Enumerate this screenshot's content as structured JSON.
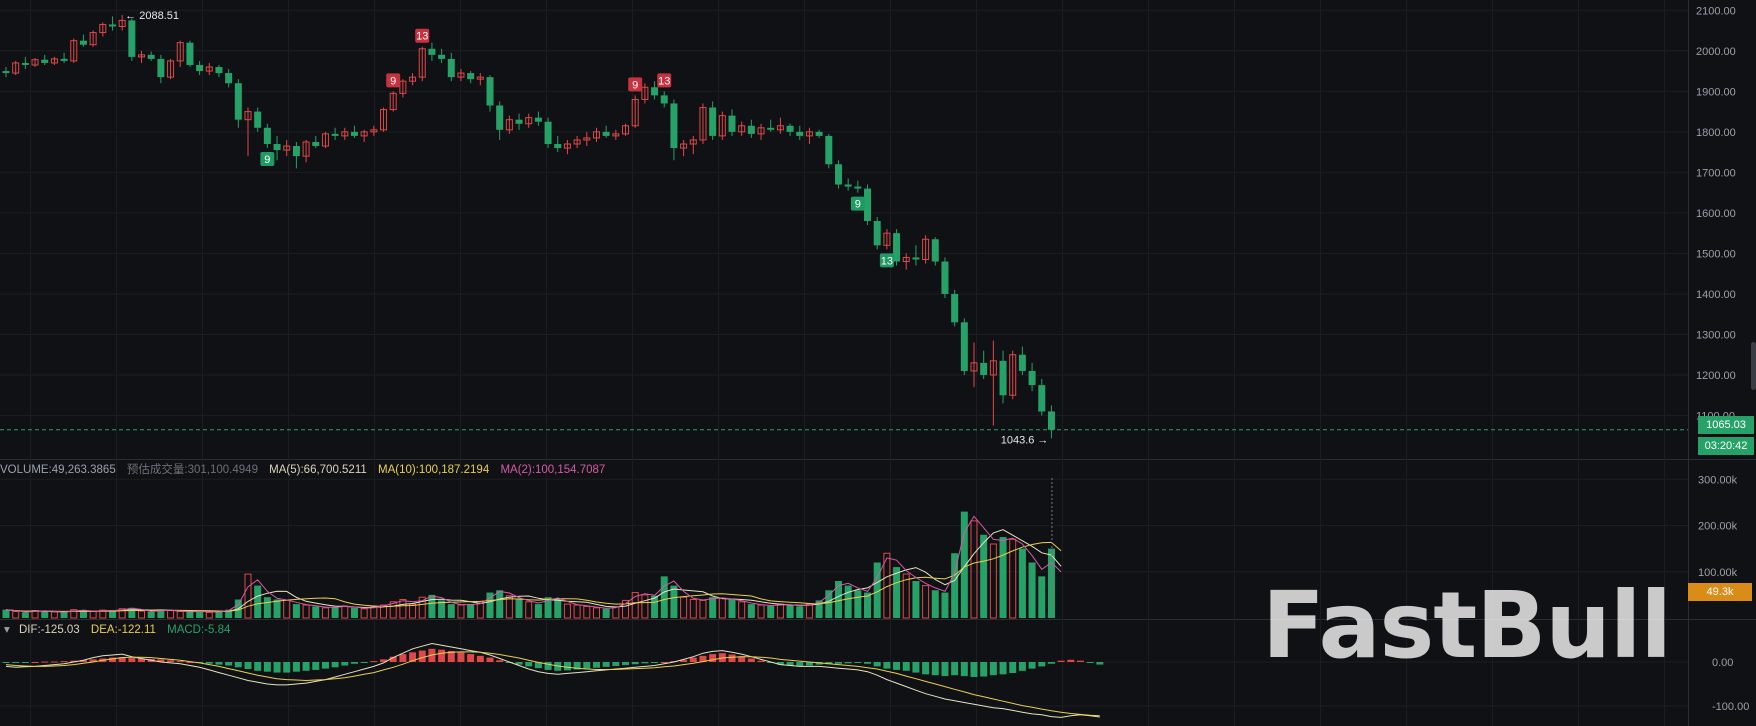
{
  "chart_data": {
    "type": "candlestick",
    "price_axis": {
      "ticks": [
        "2100.00",
        "2000.00",
        "1900.00",
        "1800.00",
        "1700.00",
        "1600.00",
        "1500.00",
        "1400.00",
        "1300.00",
        "1200.00",
        "1100.00"
      ],
      "range": [
        1010,
        2113
      ]
    },
    "current_price": "1065.03",
    "countdown": "03:20:42",
    "high_marker": "2088.51",
    "low_marker": "1043.6",
    "td_markers": [
      {
        "label": "9",
        "kind": "sell",
        "index": 40
      },
      {
        "label": "13",
        "kind": "sell",
        "index": 43
      },
      {
        "label": "9",
        "kind": "buy",
        "index": 27
      },
      {
        "label": "9",
        "kind": "sell",
        "index": 65
      },
      {
        "label": "13",
        "kind": "sell",
        "index": 68
      },
      {
        "label": "9",
        "kind": "buy",
        "index": 88
      },
      {
        "label": "13",
        "kind": "buy",
        "index": 91
      }
    ],
    "candles": [
      {
        "o": 1950,
        "h": 1960,
        "l": 1935,
        "c": 1945
      },
      {
        "o": 1945,
        "h": 1975,
        "l": 1940,
        "c": 1970
      },
      {
        "o": 1970,
        "h": 1985,
        "l": 1955,
        "c": 1965
      },
      {
        "o": 1965,
        "h": 1982,
        "l": 1960,
        "c": 1978
      },
      {
        "o": 1978,
        "h": 1990,
        "l": 1965,
        "c": 1970
      },
      {
        "o": 1970,
        "h": 1985,
        "l": 1965,
        "c": 1980
      },
      {
        "o": 1980,
        "h": 1995,
        "l": 1970,
        "c": 1975
      },
      {
        "o": 1975,
        "h": 2030,
        "l": 1970,
        "c": 2025
      },
      {
        "o": 2025,
        "h": 2040,
        "l": 2010,
        "c": 2015
      },
      {
        "o": 2015,
        "h": 2050,
        "l": 2010,
        "c": 2045
      },
      {
        "o": 2045,
        "h": 2070,
        "l": 2035,
        "c": 2065
      },
      {
        "o": 2065,
        "h": 2085,
        "l": 2050,
        "c": 2060
      },
      {
        "o": 2060,
        "h": 2088.51,
        "l": 2050,
        "c": 2075
      },
      {
        "o": 2075,
        "h": 2080,
        "l": 1975,
        "c": 1985
      },
      {
        "o": 1985,
        "h": 2000,
        "l": 1970,
        "c": 1990
      },
      {
        "o": 1990,
        "h": 1998,
        "l": 1975,
        "c": 1980
      },
      {
        "o": 1980,
        "h": 1990,
        "l": 1920,
        "c": 1935
      },
      {
        "o": 1935,
        "h": 1980,
        "l": 1930,
        "c": 1975
      },
      {
        "o": 1975,
        "h": 2025,
        "l": 1960,
        "c": 2020
      },
      {
        "o": 2020,
        "h": 2025,
        "l": 1960,
        "c": 1965
      },
      {
        "o": 1965,
        "h": 1975,
        "l": 1940,
        "c": 1950
      },
      {
        "o": 1950,
        "h": 1970,
        "l": 1940,
        "c": 1960
      },
      {
        "o": 1960,
        "h": 1965,
        "l": 1935,
        "c": 1945
      },
      {
        "o": 1945,
        "h": 1955,
        "l": 1910,
        "c": 1920
      },
      {
        "o": 1920,
        "h": 1930,
        "l": 1810,
        "c": 1830
      },
      {
        "o": 1830,
        "h": 1860,
        "l": 1740,
        "c": 1850
      },
      {
        "o": 1850,
        "h": 1860,
        "l": 1800,
        "c": 1810
      },
      {
        "o": 1810,
        "h": 1820,
        "l": 1760,
        "c": 1770
      },
      {
        "o": 1770,
        "h": 1790,
        "l": 1730,
        "c": 1755
      },
      {
        "o": 1755,
        "h": 1780,
        "l": 1740,
        "c": 1765
      },
      {
        "o": 1765,
        "h": 1775,
        "l": 1710,
        "c": 1740
      },
      {
        "o": 1740,
        "h": 1780,
        "l": 1725,
        "c": 1775
      },
      {
        "o": 1775,
        "h": 1790,
        "l": 1760,
        "c": 1765
      },
      {
        "o": 1765,
        "h": 1800,
        "l": 1760,
        "c": 1795
      },
      {
        "o": 1795,
        "h": 1810,
        "l": 1780,
        "c": 1790
      },
      {
        "o": 1790,
        "h": 1810,
        "l": 1780,
        "c": 1800
      },
      {
        "o": 1800,
        "h": 1815,
        "l": 1785,
        "c": 1790
      },
      {
        "o": 1790,
        "h": 1805,
        "l": 1775,
        "c": 1800
      },
      {
        "o": 1800,
        "h": 1815,
        "l": 1790,
        "c": 1805
      },
      {
        "o": 1805,
        "h": 1860,
        "l": 1800,
        "c": 1855
      },
      {
        "o": 1855,
        "h": 1900,
        "l": 1850,
        "c": 1895
      },
      {
        "o": 1895,
        "h": 1930,
        "l": 1885,
        "c": 1925
      },
      {
        "o": 1925,
        "h": 1945,
        "l": 1915,
        "c": 1935
      },
      {
        "o": 1935,
        "h": 2010,
        "l": 1925,
        "c": 2005
      },
      {
        "o": 2005,
        "h": 2020,
        "l": 1975,
        "c": 1990
      },
      {
        "o": 1990,
        "h": 2005,
        "l": 1970,
        "c": 1980
      },
      {
        "o": 1980,
        "h": 1995,
        "l": 1925,
        "c": 1935
      },
      {
        "o": 1935,
        "h": 1955,
        "l": 1925,
        "c": 1945
      },
      {
        "o": 1945,
        "h": 1950,
        "l": 1920,
        "c": 1930
      },
      {
        "o": 1930,
        "h": 1945,
        "l": 1915,
        "c": 1935
      },
      {
        "o": 1935,
        "h": 1940,
        "l": 1850,
        "c": 1865
      },
      {
        "o": 1865,
        "h": 1875,
        "l": 1780,
        "c": 1805
      },
      {
        "o": 1805,
        "h": 1840,
        "l": 1795,
        "c": 1830
      },
      {
        "o": 1830,
        "h": 1845,
        "l": 1805,
        "c": 1820
      },
      {
        "o": 1820,
        "h": 1845,
        "l": 1810,
        "c": 1835
      },
      {
        "o": 1835,
        "h": 1850,
        "l": 1815,
        "c": 1825
      },
      {
        "o": 1825,
        "h": 1835,
        "l": 1760,
        "c": 1770
      },
      {
        "o": 1770,
        "h": 1790,
        "l": 1750,
        "c": 1760
      },
      {
        "o": 1760,
        "h": 1780,
        "l": 1745,
        "c": 1770
      },
      {
        "o": 1770,
        "h": 1790,
        "l": 1760,
        "c": 1780
      },
      {
        "o": 1780,
        "h": 1800,
        "l": 1765,
        "c": 1785
      },
      {
        "o": 1785,
        "h": 1810,
        "l": 1775,
        "c": 1800
      },
      {
        "o": 1800,
        "h": 1815,
        "l": 1785,
        "c": 1790
      },
      {
        "o": 1790,
        "h": 1805,
        "l": 1780,
        "c": 1795
      },
      {
        "o": 1795,
        "h": 1820,
        "l": 1790,
        "c": 1815
      },
      {
        "o": 1815,
        "h": 1890,
        "l": 1810,
        "c": 1880
      },
      {
        "o": 1880,
        "h": 1920,
        "l": 1870,
        "c": 1910
      },
      {
        "o": 1910,
        "h": 1925,
        "l": 1880,
        "c": 1890
      },
      {
        "o": 1890,
        "h": 1900,
        "l": 1860,
        "c": 1870
      },
      {
        "o": 1870,
        "h": 1880,
        "l": 1730,
        "c": 1760
      },
      {
        "o": 1760,
        "h": 1780,
        "l": 1740,
        "c": 1770
      },
      {
        "o": 1770,
        "h": 1790,
        "l": 1745,
        "c": 1780
      },
      {
        "o": 1780,
        "h": 1870,
        "l": 1770,
        "c": 1860
      },
      {
        "o": 1860,
        "h": 1875,
        "l": 1780,
        "c": 1790
      },
      {
        "o": 1790,
        "h": 1850,
        "l": 1780,
        "c": 1840
      },
      {
        "o": 1840,
        "h": 1855,
        "l": 1790,
        "c": 1800
      },
      {
        "o": 1800,
        "h": 1825,
        "l": 1790,
        "c": 1815
      },
      {
        "o": 1815,
        "h": 1830,
        "l": 1785,
        "c": 1795
      },
      {
        "o": 1795,
        "h": 1820,
        "l": 1780,
        "c": 1810
      },
      {
        "o": 1810,
        "h": 1830,
        "l": 1800,
        "c": 1805
      },
      {
        "o": 1805,
        "h": 1835,
        "l": 1795,
        "c": 1815
      },
      {
        "o": 1815,
        "h": 1820,
        "l": 1790,
        "c": 1800
      },
      {
        "o": 1800,
        "h": 1815,
        "l": 1780,
        "c": 1790
      },
      {
        "o": 1790,
        "h": 1810,
        "l": 1770,
        "c": 1800
      },
      {
        "o": 1800,
        "h": 1805,
        "l": 1785,
        "c": 1790
      },
      {
        "o": 1790,
        "h": 1795,
        "l": 1710,
        "c": 1720
      },
      {
        "o": 1720,
        "h": 1730,
        "l": 1660,
        "c": 1670
      },
      {
        "o": 1670,
        "h": 1685,
        "l": 1655,
        "c": 1665
      },
      {
        "o": 1665,
        "h": 1680,
        "l": 1650,
        "c": 1660
      },
      {
        "o": 1660,
        "h": 1670,
        "l": 1570,
        "c": 1580
      },
      {
        "o": 1580,
        "h": 1590,
        "l": 1510,
        "c": 1520
      },
      {
        "o": 1520,
        "h": 1560,
        "l": 1510,
        "c": 1550
      },
      {
        "o": 1550,
        "h": 1560,
        "l": 1470,
        "c": 1480
      },
      {
        "o": 1480,
        "h": 1500,
        "l": 1460,
        "c": 1490
      },
      {
        "o": 1490,
        "h": 1520,
        "l": 1470,
        "c": 1485
      },
      {
        "o": 1485,
        "h": 1545,
        "l": 1475,
        "c": 1535
      },
      {
        "o": 1535,
        "h": 1540,
        "l": 1470,
        "c": 1480
      },
      {
        "o": 1480,
        "h": 1490,
        "l": 1390,
        "c": 1400
      },
      {
        "o": 1400,
        "h": 1410,
        "l": 1320,
        "c": 1330
      },
      {
        "o": 1330,
        "h": 1340,
        "l": 1200,
        "c": 1210
      },
      {
        "o": 1210,
        "h": 1280,
        "l": 1170,
        "c": 1230
      },
      {
        "o": 1230,
        "h": 1260,
        "l": 1190,
        "c": 1200
      },
      {
        "o": 1200,
        "h": 1285,
        "l": 1075,
        "c": 1235
      },
      {
        "o": 1235,
        "h": 1260,
        "l": 1130,
        "c": 1150
      },
      {
        "o": 1150,
        "h": 1260,
        "l": 1140,
        "c": 1250
      },
      {
        "o": 1250,
        "h": 1270,
        "l": 1200,
        "c": 1210
      },
      {
        "o": 1210,
        "h": 1230,
        "l": 1160,
        "c": 1175
      },
      {
        "o": 1175,
        "h": 1190,
        "l": 1100,
        "c": 1110
      },
      {
        "o": 1110,
        "h": 1125,
        "l": 1043.6,
        "c": 1065.03
      }
    ],
    "volume": {
      "legend": {
        "volume": "VOLUME:49,263.3865",
        "forecast": "预估成交量:301,100.4949",
        "ma5": "MA(5):66,700.5211",
        "ma10": "MA(10):100,187.2194",
        "ma2": "MA(2):100,154.7087"
      },
      "ticks": [
        "300.00k",
        "200.00k",
        "100.00k"
      ],
      "current_label": "49.3k",
      "values": [
        18,
        14,
        12,
        16,
        15,
        13,
        12,
        18,
        16,
        14,
        17,
        15,
        20,
        22,
        15,
        13,
        18,
        16,
        14,
        13,
        15,
        12,
        14,
        18,
        40,
        95,
        70,
        45,
        40,
        38,
        30,
        28,
        25,
        22,
        24,
        26,
        22,
        20,
        24,
        28,
        35,
        40,
        30,
        45,
        50,
        38,
        30,
        28,
        30,
        32,
        55,
        60,
        48,
        40,
        35,
        30,
        45,
        42,
        30,
        28,
        25,
        22,
        20,
        24,
        38,
        55,
        50,
        48,
        90,
        70,
        45,
        40,
        38,
        45,
        42,
        40,
        35,
        30,
        28,
        26,
        30,
        28,
        25,
        30,
        38,
        60,
        80,
        70,
        60,
        55,
        120,
        140,
        110,
        95,
        80,
        70,
        60,
        55,
        140,
        230,
        210,
        180,
        160,
        175,
        170,
        150,
        120,
        90,
        150,
        49.3
      ]
    },
    "macd": {
      "legend": {
        "dif": "DIF:-125.03",
        "dea": "DEA:-122.11",
        "macd": "MACD:-5.84"
      },
      "ticks": [
        "0.00",
        "-100.00"
      ],
      "hist": [
        -2,
        -2,
        -1,
        0,
        1,
        1,
        2,
        3,
        4,
        6,
        8,
        10,
        11,
        9,
        8,
        7,
        6,
        4,
        2,
        0,
        -2,
        -4,
        -6,
        -8,
        -12,
        -16,
        -20,
        -22,
        -24,
        -24,
        -22,
        -20,
        -18,
        -15,
        -12,
        -8,
        -4,
        -1,
        2,
        6,
        12,
        18,
        22,
        26,
        30,
        28,
        25,
        22,
        18,
        14,
        10,
        4,
        -2,
        -6,
        -10,
        -14,
        -18,
        -20,
        -19,
        -17,
        -15,
        -13,
        -11,
        -9,
        -7,
        -5,
        -3,
        -1,
        0,
        2,
        5,
        10,
        14,
        18,
        20,
        17,
        13,
        8,
        3,
        -2,
        -6,
        -8,
        -9,
        -8,
        -6,
        -5,
        -4,
        -3,
        -2,
        -4,
        -10,
        -15,
        -18,
        -20,
        -24,
        -28,
        -30,
        -32,
        -30,
        -32,
        -34,
        -33,
        -30,
        -28,
        -25,
        -20,
        -15,
        -10,
        -4,
        3,
        5,
        3,
        -1,
        -5.84
      ],
      "dif": [
        -10,
        -12,
        -11,
        -10,
        -8,
        -6,
        -4,
        0,
        4,
        10,
        14,
        16,
        18,
        12,
        8,
        4,
        0,
        -2,
        -4,
        -8,
        -12,
        -18,
        -24,
        -30,
        -36,
        -42,
        -46,
        -50,
        -52,
        -52,
        -50,
        -48,
        -44,
        -40,
        -34,
        -28,
        -22,
        -16,
        -10,
        -2,
        10,
        20,
        30,
        36,
        42,
        38,
        34,
        30,
        26,
        22,
        16,
        8,
        0,
        -8,
        -16,
        -22,
        -26,
        -28,
        -26,
        -24,
        -22,
        -20,
        -18,
        -16,
        -14,
        -12,
        -10,
        -8,
        -4,
        0,
        6,
        12,
        20,
        24,
        26,
        22,
        18,
        12,
        6,
        0,
        -6,
        -8,
        -10,
        -10,
        -10,
        -12,
        -14,
        -16,
        -18,
        -22,
        -30,
        -40,
        -48,
        -56,
        -64,
        -72,
        -78,
        -84,
        -88,
        -92,
        -96,
        -100,
        -104,
        -106,
        -110,
        -114,
        -118,
        -120,
        -124,
        -126,
        -122,
        -120,
        -122,
        -125.03
      ],
      "dea": [
        -6,
        -8,
        -9,
        -10,
        -10,
        -9,
        -8,
        -6,
        -3,
        0,
        4,
        7,
        10,
        11,
        11,
        10,
        8,
        6,
        4,
        1,
        -2,
        -6,
        -10,
        -15,
        -20,
        -25,
        -30,
        -34,
        -38,
        -40,
        -41,
        -42,
        -41,
        -40,
        -38,
        -36,
        -32,
        -28,
        -24,
        -18,
        -12,
        -5,
        3,
        10,
        16,
        20,
        22,
        23,
        23,
        22,
        20,
        17,
        13,
        9,
        4,
        -1,
        -5,
        -9,
        -12,
        -14,
        -16,
        -17,
        -17,
        -17,
        -16,
        -15,
        -14,
        -13,
        -11,
        -9,
        -6,
        -3,
        1,
        5,
        9,
        11,
        12,
        12,
        11,
        9,
        6,
        4,
        2,
        0,
        -2,
        -4,
        -6,
        -8,
        -10,
        -13,
        -16,
        -21,
        -26,
        -32,
        -38,
        -44,
        -50,
        -56,
        -62,
        -68,
        -74,
        -79,
        -84,
        -89,
        -94,
        -99,
        -103,
        -107,
        -111,
        -114,
        -117,
        -119,
        -121,
        -122.11
      ]
    },
    "watermark": "FastBull",
    "colors": {
      "up": "#26a269",
      "down": "#e04848",
      "background": "#101114",
      "ma5": "#e7e2c2",
      "ma10": "#e9cf4f",
      "ma2": "#d55aa8",
      "accent_orange": "#d98c18"
    }
  }
}
